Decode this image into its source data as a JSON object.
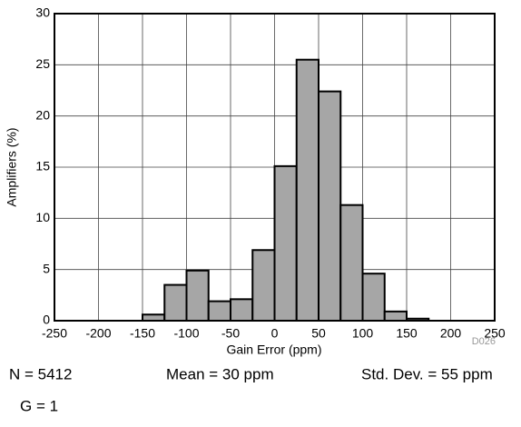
{
  "chart_data": {
    "type": "histogram",
    "xlabel": "Gain Error (ppm)",
    "ylabel": "Amplifiers (%)",
    "bins": [
      -150,
      -125,
      -100,
      -75,
      -50,
      -25,
      0,
      25,
      50,
      75,
      100,
      125,
      150,
      175
    ],
    "counts": [
      0.6,
      3.5,
      4.9,
      1.9,
      2.1,
      6.9,
      15.1,
      25.5,
      22.4,
      11.3,
      4.6,
      0.9,
      0.2
    ],
    "color": "#a6a6a6",
    "xlim": [
      -250,
      250
    ],
    "xticks": [
      -250,
      -200,
      -150,
      -100,
      -50,
      0,
      50,
      100,
      150,
      200,
      250
    ],
    "ylim": [
      0,
      30
    ],
    "yticks": [
      0,
      5,
      10,
      15,
      20,
      25,
      30
    ],
    "grid": true,
    "annotations": [
      "N = 5412",
      "Mean = 30 ppm",
      "Std. Dev. = 55 ppm",
      "G = 1",
      "D026"
    ]
  }
}
